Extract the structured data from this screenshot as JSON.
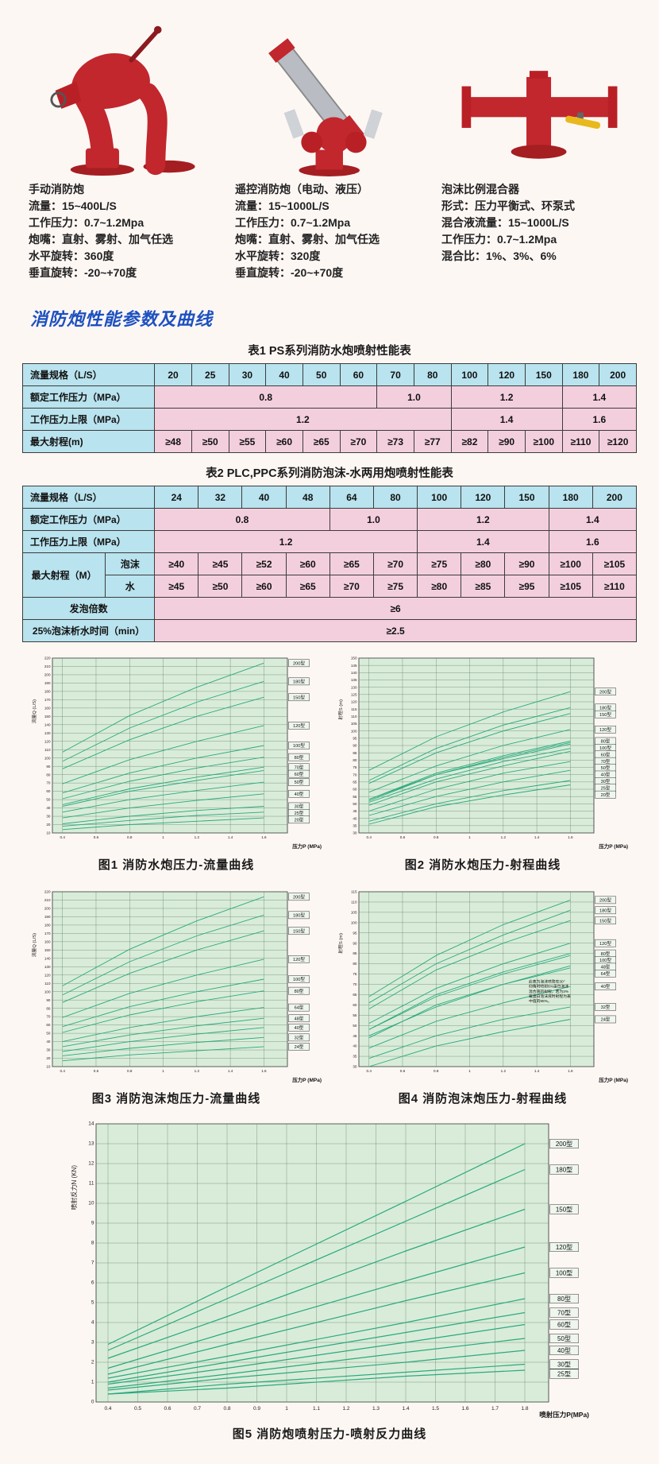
{
  "section_title": "消防炮性能参数及曲线",
  "colors": {
    "title_blue": "#1d50c0",
    "table_header_bg": "#b9e3ee",
    "table_data_bg": "#f3cfdd",
    "chart_bg": "#d9ecd9",
    "curve_green": "#29a97e",
    "product_red": "#c1272d"
  },
  "products": [
    {
      "name": "手动消防炮",
      "image": "manual-fire-monitor-photo",
      "specs": [
        "流量：15~400L/S",
        "工作压力：0.7~1.2Mpa",
        "炮嘴：直射、雾射、加气任选",
        "水平旋转：360度",
        "垂直旋转：-20~+70度"
      ]
    },
    {
      "name": "遥控消防炮（电动、液压）",
      "image": "remote-fire-monitor-photo",
      "specs": [
        "流量：15~1000L/S",
        "工作压力：0.7~1.2Mpa",
        "炮嘴：直射、雾射、加气任选",
        "水平旋转：320度",
        "垂直旋转：-20~+70度"
      ]
    },
    {
      "name": "泡沫比例混合器",
      "image": "foam-proportioner-photo",
      "specs": [
        "形式：压力平衡式、环泵式",
        "混合液流量：15~1000L/S",
        "工作压力：0.7~1.2Mpa",
        "混合比：1%、3%、6%"
      ]
    }
  ],
  "tables": [
    {
      "title": "表1  PS系列消防水炮喷射性能表",
      "label_widths": [
        "21.5%"
      ],
      "data_cols": 13,
      "rows": [
        [
          {
            "t": "流量规格（L/S）",
            "k": "h"
          },
          {
            "t": "20",
            "k": "b"
          },
          {
            "t": "25",
            "k": "b"
          },
          {
            "t": "30",
            "k": "b"
          },
          {
            "t": "40",
            "k": "b"
          },
          {
            "t": "50",
            "k": "b"
          },
          {
            "t": "60",
            "k": "b"
          },
          {
            "t": "70",
            "k": "b"
          },
          {
            "t": "80",
            "k": "b"
          },
          {
            "t": "100",
            "k": "b"
          },
          {
            "t": "120",
            "k": "b"
          },
          {
            "t": "150",
            "k": "b"
          },
          {
            "t": "180",
            "k": "b"
          },
          {
            "t": "200",
            "k": "b"
          }
        ],
        [
          {
            "t": "额定工作压力（MPa）",
            "k": "h"
          },
          {
            "t": "0.8",
            "c": 6
          },
          {
            "t": "1.0",
            "c": 2
          },
          {
            "t": "1.2",
            "c": 3
          },
          {
            "t": "1.4",
            "c": 2
          }
        ],
        [
          {
            "t": "工作压力上限（MPa）",
            "k": "h"
          },
          {
            "t": "1.2",
            "c": 8
          },
          {
            "t": "1.4",
            "c": 3
          },
          {
            "t": "1.6",
            "c": 2
          }
        ],
        [
          {
            "t": "最大射程(m)",
            "k": "h"
          },
          {
            "t": "≥48"
          },
          {
            "t": "≥50"
          },
          {
            "t": "≥55"
          },
          {
            "t": "≥60"
          },
          {
            "t": "≥65"
          },
          {
            "t": "≥70"
          },
          {
            "t": "≥73"
          },
          {
            "t": "≥77"
          },
          {
            "t": "≥82"
          },
          {
            "t": "≥90"
          },
          {
            "t": "≥100"
          },
          {
            "t": "≥110"
          },
          {
            "t": "≥120"
          }
        ]
      ]
    },
    {
      "title": "表2  PLC,PPC系列消防泡沫-水两用炮喷射性能表",
      "label_widths": [
        "13.5%",
        "8%"
      ],
      "data_cols": 11,
      "rows": [
        [
          {
            "t": "流量规格（L/S）",
            "k": "h",
            "c": 2
          },
          {
            "t": "24",
            "k": "b"
          },
          {
            "t": "32",
            "k": "b"
          },
          {
            "t": "40",
            "k": "b"
          },
          {
            "t": "48",
            "k": "b"
          },
          {
            "t": "64",
            "k": "b"
          },
          {
            "t": "80",
            "k": "b"
          },
          {
            "t": "100",
            "k": "b"
          },
          {
            "t": "120",
            "k": "b"
          },
          {
            "t": "150",
            "k": "b"
          },
          {
            "t": "180",
            "k": "b"
          },
          {
            "t": "200",
            "k": "b"
          }
        ],
        [
          {
            "t": "额定工作压力（MPa）",
            "k": "h",
            "c": 2
          },
          {
            "t": "0.8",
            "c": 4
          },
          {
            "t": "1.0",
            "c": 2
          },
          {
            "t": "1.2",
            "c": 3
          },
          {
            "t": "1.4",
            "c": 2
          }
        ],
        [
          {
            "t": "工作压力上限（MPa）",
            "k": "h",
            "c": 2
          },
          {
            "t": "1.2",
            "c": 6
          },
          {
            "t": "1.4",
            "c": 3
          },
          {
            "t": "1.6",
            "c": 2
          }
        ],
        [
          {
            "t": "最大射程（M）",
            "k": "hc",
            "r": 2
          },
          {
            "t": "泡沫",
            "k": "hc"
          },
          {
            "t": "≥40"
          },
          {
            "t": "≥45"
          },
          {
            "t": "≥52"
          },
          {
            "t": "≥60"
          },
          {
            "t": "≥65"
          },
          {
            "t": "≥70"
          },
          {
            "t": "≥75"
          },
          {
            "t": "≥80"
          },
          {
            "t": "≥90"
          },
          {
            "t": "≥100"
          },
          {
            "t": "≥105"
          }
        ],
        [
          {
            "t": "水",
            "k": "hc"
          },
          {
            "t": "≥45"
          },
          {
            "t": "≥50"
          },
          {
            "t": "≥60"
          },
          {
            "t": "≥65"
          },
          {
            "t": "≥70"
          },
          {
            "t": "≥75"
          },
          {
            "t": "≥80"
          },
          {
            "t": "≥85"
          },
          {
            "t": "≥95"
          },
          {
            "t": "≥105"
          },
          {
            "t": "≥110"
          }
        ],
        [
          {
            "t": "发泡倍数",
            "k": "hc",
            "c": 2
          },
          {
            "t": "≥6",
            "c": 11
          }
        ],
        [
          {
            "t": "25%泡沫析水时间（min）",
            "k": "hc",
            "c": 2
          },
          {
            "t": "≥2.5",
            "c": 11
          }
        ]
      ]
    }
  ],
  "chart_data": [
    {
      "type": "line",
      "caption": "图1 消防水炮压力-流量曲线",
      "xlabel": "压力P (MPa)",
      "ylabel": "流量Q (L/S)",
      "x": [
        0.4,
        0.8,
        1.2,
        1.6
      ],
      "xticks": [
        0.4,
        0.6,
        0.8,
        1,
        1.2,
        1.4,
        1.6
      ],
      "xlim": [
        0.34,
        1.74
      ],
      "ylim": [
        10,
        220
      ],
      "ystep": 10,
      "legend_position": "right-edge-boxes",
      "grid": true,
      "series": [
        {
          "name": "200型",
          "values": [
            107,
            151,
            185,
            214
          ]
        },
        {
          "name": "180型",
          "values": [
            96,
            136,
            167,
            192
          ]
        },
        {
          "name": "150型",
          "values": [
            87,
            122,
            150,
            173
          ]
        },
        {
          "name": "120型",
          "values": [
            69,
            98,
            120,
            139
          ]
        },
        {
          "name": "100型",
          "values": [
            58,
            82,
            100,
            115
          ]
        },
        {
          "name": "80型",
          "values": [
            51,
            72,
            88,
            101
          ]
        },
        {
          "name": "70型",
          "values": [
            44,
            63,
            77,
            89
          ]
        },
        {
          "name": "60型",
          "values": [
            42,
            60,
            73,
            85
          ]
        },
        {
          "name": "50型",
          "values": [
            35,
            50,
            61,
            71
          ]
        },
        {
          "name": "40型",
          "values": [
            28,
            40,
            49,
            57
          ]
        },
        {
          "name": "30型",
          "values": [
            21,
            30,
            37,
            42
          ]
        },
        {
          "name": "25型",
          "values": [
            18,
            25,
            31,
            35
          ]
        },
        {
          "name": "20型",
          "values": [
            14,
            20,
            24,
            28
          ]
        }
      ]
    },
    {
      "type": "line",
      "caption": "图2 消防水炮压力-射程曲线",
      "xlabel": "压力P (MPa)",
      "ylabel": "射程S (m)",
      "x": [
        0.4,
        0.8,
        1.2,
        1.6
      ],
      "xticks": [
        0.4,
        0.6,
        0.8,
        1,
        1.2,
        1.4,
        1.6
      ],
      "xlim": [
        0.34,
        1.74
      ],
      "ylim": [
        30,
        150
      ],
      "ystep": 5,
      "legend_position": "right-edge-boxes",
      "grid": true,
      "series": [
        {
          "name": "200型",
          "values": [
            73,
            96,
            113,
            127
          ]
        },
        {
          "name": "180型",
          "values": [
            66,
            88,
            104,
            116
          ]
        },
        {
          "name": "150型",
          "values": [
            64,
            85,
            100,
            112
          ]
        },
        {
          "name": "120型",
          "values": [
            58,
            76,
            90,
            101
          ]
        },
        {
          "name": "100型",
          "values": [
            53,
            70,
            82,
            92
          ]
        },
        {
          "name": "80型",
          "values": [
            53,
            71,
            83,
            93
          ]
        },
        {
          "name": "70型",
          "values": [
            51,
            67,
            79,
            88
          ]
        },
        {
          "name": "60型",
          "values": [
            52,
            70,
            81,
            91
          ]
        },
        {
          "name": "50型",
          "values": [
            49,
            65,
            76,
            86
          ]
        },
        {
          "name": "40型",
          "values": [
            45,
            60,
            71,
            79
          ]
        },
        {
          "name": "30型",
          "values": [
            42,
            55,
            65,
            73
          ]
        },
        {
          "name": "25型",
          "values": [
            38,
            50,
            59,
            66
          ]
        },
        {
          "name": "20型",
          "values": [
            36,
            48,
            56,
            63
          ]
        }
      ]
    },
    {
      "type": "line",
      "caption": "图3 消防泡沫炮压力-流量曲线",
      "xlabel": "压力P (MPa)",
      "ylabel": "流量Q (L/S)",
      "x": [
        0.4,
        0.8,
        1.2,
        1.6
      ],
      "xticks": [
        0.4,
        0.6,
        0.8,
        1,
        1.2,
        1.4,
        1.6
      ],
      "xlim": [
        0.34,
        1.74
      ],
      "ylim": [
        10,
        220
      ],
      "ystep": 10,
      "legend_position": "right-edge-boxes",
      "grid": true,
      "series": [
        {
          "name": "200型",
          "values": [
            107,
            151,
            185,
            214
          ]
        },
        {
          "name": "180型",
          "values": [
            96,
            136,
            167,
            192
          ]
        },
        {
          "name": "150型",
          "values": [
            87,
            122,
            150,
            173
          ]
        },
        {
          "name": "120型",
          "values": [
            69,
            98,
            120,
            139
          ]
        },
        {
          "name": "100型",
          "values": [
            58,
            82,
            100,
            115
          ]
        },
        {
          "name": "80型",
          "values": [
            51,
            72,
            88,
            101
          ]
        },
        {
          "name": "64型",
          "values": [
            40,
            57,
            70,
            81
          ]
        },
        {
          "name": "48型",
          "values": [
            34,
            48,
            59,
            68
          ]
        },
        {
          "name": "40型",
          "values": [
            28,
            40,
            49,
            57
          ]
        },
        {
          "name": "32型",
          "values": [
            23,
            32,
            39,
            45
          ]
        },
        {
          "name": "24型",
          "values": [
            17,
            24,
            29,
            34
          ]
        }
      ]
    },
    {
      "type": "line",
      "caption": "图4 消防泡沫炮压力-射程曲线",
      "xlabel": "压力P (MPa)",
      "ylabel": "射程S (m)",
      "x": [
        0.4,
        0.8,
        1.2,
        1.6
      ],
      "xticks": [
        0.4,
        0.6,
        0.8,
        1,
        1.2,
        1.4,
        1.6
      ],
      "xlim": [
        0.34,
        1.74
      ],
      "ylim": [
        30,
        115
      ],
      "ystep": 5,
      "legend_position": "right-edge-boxes",
      "grid": true,
      "annotation": "此表为泡沫喷管在30°仰角时喷射6%蛋白泡沫混合液的射程，若为3%氟蛋白泡沫液时射程为表中值的88%。",
      "series": [
        {
          "name": "200型",
          "values": [
            64,
            84,
            99,
            111
          ]
        },
        {
          "name": "180型",
          "values": [
            61,
            80,
            94,
            106
          ]
        },
        {
          "name": "150型",
          "values": [
            58,
            77,
            90,
            101
          ]
        },
        {
          "name": "120型",
          "values": [
            51,
            68,
            80,
            90
          ]
        },
        {
          "name": "100型",
          "values": [
            48,
            64,
            75,
            84
          ]
        },
        {
          "name": "80型",
          "values": [
            48,
            65,
            76,
            85
          ]
        },
        {
          "name": "64型",
          "values": [
            45,
            59,
            70,
            78
          ]
        },
        {
          "name": "48型",
          "values": [
            44,
            60,
            70,
            79
          ]
        },
        {
          "name": "40型",
          "values": [
            39,
            52,
            61,
            69
          ]
        },
        {
          "name": "32型",
          "values": [
            34,
            45,
            53,
            59
          ]
        },
        {
          "name": "24型",
          "values": [
            30,
            40,
            47,
            53
          ]
        }
      ]
    },
    {
      "type": "line",
      "big": true,
      "caption": "图5 消防炮喷射压力-喷射反力曲线",
      "xlabel": "喷射压力P(MPa)",
      "ylabel": "喷射反力N (KN)",
      "x": [
        0.4,
        0.8,
        1.4,
        1.8
      ],
      "xticks": [
        0.4,
        0.5,
        0.6,
        0.7,
        0.8,
        0.9,
        1,
        1.1,
        1.2,
        1.3,
        1.4,
        1.5,
        1.6,
        1.7,
        1.8
      ],
      "xlim": [
        0.36,
        1.88
      ],
      "ylim": [
        0,
        14
      ],
      "ystep": 1,
      "legend_position": "right-edge-boxes",
      "grid": true,
      "series": [
        {
          "name": "200型",
          "values": [
            2.9,
            5.8,
            10.1,
            13
          ]
        },
        {
          "name": "180型",
          "values": [
            2.6,
            5.2,
            9.1,
            11.7
          ]
        },
        {
          "name": "150型",
          "values": [
            2.2,
            4.3,
            7.6,
            9.7
          ]
        },
        {
          "name": "120型",
          "values": [
            1.7,
            3.5,
            6.1,
            7.8
          ]
        },
        {
          "name": "100型",
          "values": [
            1.4,
            2.9,
            5.1,
            6.5
          ]
        },
        {
          "name": "80型",
          "values": [
            1.2,
            2.3,
            4,
            5.2
          ]
        },
        {
          "name": "70型",
          "values": [
            1,
            2,
            3.5,
            4.5
          ]
        },
        {
          "name": "60型",
          "values": [
            0.9,
            1.7,
            3,
            3.9
          ]
        },
        {
          "name": "50型",
          "values": [
            0.7,
            1.4,
            2.5,
            3.2
          ]
        },
        {
          "name": "40型",
          "values": [
            0.6,
            1.2,
            2,
            2.6
          ]
        },
        {
          "name": "30型",
          "values": [
            0.4,
            0.9,
            1.5,
            1.9
          ]
        },
        {
          "name": "25型",
          "values": [
            0.4,
            0.7,
            1.3,
            1.6
          ]
        }
      ]
    }
  ]
}
